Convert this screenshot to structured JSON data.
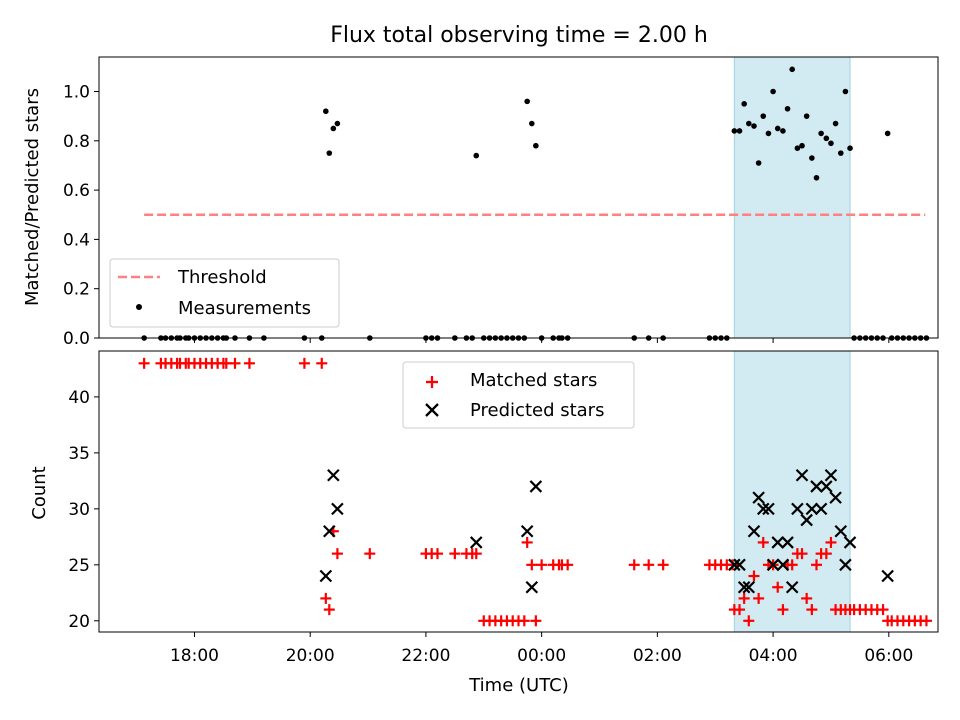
{
  "figure": {
    "title": "Flux total observing time = 2.00 h",
    "xlabel": "Time (UTC)",
    "highlight_start_h": 27.33,
    "highlight_end_h": 29.33,
    "highlight_color": "#add8e6"
  },
  "chart_data": [
    {
      "type": "scatter",
      "ylabel": "Matched/Predicted stars",
      "xlim_hours": [
        16.35,
        30.85
      ],
      "ylim": [
        0,
        1.14
      ],
      "yticks": [
        "0.0",
        "0.2",
        "0.4",
        "0.6",
        "0.8",
        "1.0"
      ],
      "legend_position": "lower left",
      "threshold": {
        "name": "Threshold",
        "value": 0.5,
        "x_range_hours": [
          17.13,
          30.63
        ],
        "color": "#ff8080"
      },
      "series": [
        {
          "name": "Measurements",
          "color": "#000000",
          "x_hours": [
            17.13,
            17.42,
            17.5,
            17.6,
            17.7,
            17.75,
            17.85,
            17.9,
            18.0,
            18.1,
            18.2,
            18.3,
            18.4,
            18.5,
            18.55,
            18.7,
            18.95,
            19.2,
            19.9,
            20.2,
            21.03,
            22.0,
            22.1,
            22.2,
            22.5,
            22.7,
            22.8,
            23.0,
            23.1,
            23.2,
            23.3,
            23.4,
            23.5,
            23.6,
            23.7,
            24.0,
            24.2,
            24.3,
            24.35,
            24.45,
            25.6,
            25.85,
            26.1,
            26.9,
            27.0,
            27.1,
            27.2,
            29.4,
            29.5,
            29.6,
            29.7,
            29.8,
            29.9,
            30.05,
            30.15,
            30.25,
            30.35,
            30.45,
            30.55,
            30.65,
            20.27,
            20.33,
            20.4,
            20.47,
            22.87,
            23.75,
            23.83,
            23.9,
            27.33,
            27.42,
            27.5,
            27.58,
            27.67,
            27.75,
            27.83,
            27.92,
            28.0,
            28.08,
            28.17,
            28.25,
            28.33,
            28.42,
            28.5,
            28.58,
            28.67,
            28.75,
            28.83,
            28.92,
            29.0,
            29.08,
            29.17,
            29.25,
            29.33,
            29.98
          ],
          "y": [
            0,
            0,
            0,
            0,
            0,
            0,
            0,
            0,
            0,
            0,
            0,
            0,
            0,
            0,
            0,
            0,
            0,
            0,
            0,
            0,
            0,
            0,
            0,
            0,
            0,
            0,
            0,
            0,
            0,
            0,
            0,
            0,
            0,
            0,
            0,
            0,
            0,
            0,
            0,
            0,
            0,
            0,
            0,
            0,
            0,
            0,
            0,
            0,
            0,
            0,
            0,
            0,
            0,
            0,
            0,
            0,
            0,
            0,
            0,
            0,
            0.92,
            0.75,
            0.85,
            0.87,
            0.74,
            0.96,
            0.87,
            0.78,
            0.84,
            0.84,
            0.95,
            0.87,
            0.86,
            0.71,
            0.9,
            0.83,
            1.0,
            0.85,
            0.84,
            0.93,
            1.09,
            0.77,
            0.78,
            0.9,
            0.73,
            0.65,
            0.83,
            0.81,
            0.79,
            0.87,
            0.75,
            1.0,
            0.77,
            0.83
          ]
        }
      ]
    },
    {
      "type": "scatter",
      "ylabel": "Count",
      "xlim_hours": [
        16.35,
        30.85
      ],
      "ylim": [
        19,
        44.1
      ],
      "yticks": [
        "20",
        "25",
        "30",
        "35",
        "40"
      ],
      "xticks": [
        "18:00",
        "20:00",
        "22:00",
        "00:00",
        "02:00",
        "04:00",
        "06:00"
      ],
      "xtick_hours": [
        18,
        20,
        22,
        24,
        26,
        28,
        30
      ],
      "legend_position": "upper center",
      "series": [
        {
          "name": "Matched stars",
          "color": "#ff0000",
          "marker": "+",
          "x_hours": [
            17.13,
            17.42,
            17.5,
            17.6,
            17.7,
            17.75,
            17.85,
            17.9,
            18.0,
            18.1,
            18.2,
            18.3,
            18.4,
            18.5,
            18.55,
            18.7,
            18.95,
            19.9,
            20.2,
            20.27,
            20.33,
            20.4,
            20.47,
            21.03,
            22.0,
            22.1,
            22.2,
            22.5,
            22.7,
            22.8,
            22.87,
            23.0,
            23.1,
            23.2,
            23.3,
            23.4,
            23.5,
            23.6,
            23.7,
            23.75,
            23.83,
            23.9,
            24.0,
            24.2,
            24.3,
            24.35,
            24.45,
            25.6,
            25.85,
            26.1,
            26.9,
            27.0,
            27.1,
            27.2,
            27.3,
            27.33,
            27.42,
            27.5,
            27.58,
            27.67,
            27.75,
            27.83,
            27.92,
            28.0,
            28.08,
            28.17,
            28.25,
            28.33,
            28.42,
            28.5,
            28.58,
            28.67,
            28.75,
            28.83,
            28.92,
            29.0,
            29.08,
            29.17,
            29.25,
            29.33,
            29.4,
            29.5,
            29.6,
            29.7,
            29.8,
            29.9,
            29.98,
            30.05,
            30.15,
            30.25,
            30.35,
            30.45,
            30.55,
            30.65
          ],
          "y": [
            43,
            43,
            43,
            43,
            43,
            43,
            43,
            43,
            43,
            43,
            43,
            43,
            43,
            43,
            43,
            43,
            43,
            43,
            43,
            22,
            21,
            28,
            26,
            26,
            26,
            26,
            26,
            26,
            26,
            26,
            26,
            20,
            20,
            20,
            20,
            20,
            20,
            20,
            20,
            27,
            25,
            20,
            25,
            25,
            25,
            25,
            25,
            25,
            25,
            25,
            25,
            25,
            25,
            25,
            25,
            21,
            21,
            22,
            20,
            24,
            22,
            27,
            25,
            25,
            23,
            21,
            25,
            25,
            26,
            26,
            22,
            21,
            25,
            26,
            26,
            27,
            21,
            21,
            21,
            21,
            21,
            21,
            21,
            21,
            21,
            21,
            20,
            20,
            20,
            20,
            20,
            20,
            20,
            20
          ]
        },
        {
          "name": "Predicted stars",
          "color": "#000000",
          "marker": "x",
          "x_hours": [
            20.27,
            20.33,
            20.4,
            20.47,
            22.87,
            23.75,
            23.83,
            23.9,
            27.33,
            27.42,
            27.5,
            27.58,
            27.67,
            27.75,
            27.83,
            27.92,
            28.0,
            28.08,
            28.17,
            28.25,
            28.33,
            28.42,
            28.5,
            28.58,
            28.67,
            28.75,
            28.83,
            28.92,
            29.0,
            29.08,
            29.17,
            29.25,
            29.33,
            29.98
          ],
          "y": [
            24,
            28,
            33,
            30,
            27,
            28,
            23,
            32,
            25,
            25,
            23,
            23,
            28,
            31,
            30,
            30,
            25,
            27,
            25,
            27,
            23,
            30,
            33,
            29,
            30,
            32,
            30,
            32,
            33,
            31,
            28,
            25,
            27,
            24
          ]
        }
      ]
    }
  ]
}
